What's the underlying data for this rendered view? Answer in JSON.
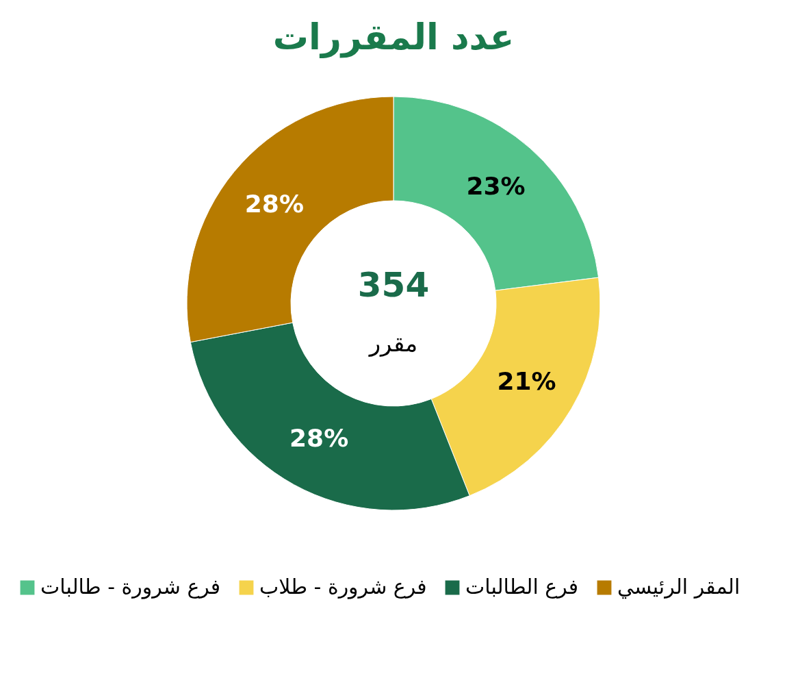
{
  "chart_data": {
    "type": "donut",
    "title": "عدد المقررات",
    "categories": [
      "فرع شرورة - طالبات",
      "فرع شرورة - طلاب",
      "فرع الطالبات",
      "المقر الرئيسي"
    ],
    "values": [
      23,
      21,
      28,
      28
    ],
    "colors": [
      "#54c38b",
      "#f5d34c",
      "#1a6b4a",
      "#b77b00"
    ],
    "value_labels": [
      "23%",
      "21%",
      "28%",
      "28%"
    ],
    "annotations": [
      "354",
      "مقرر"
    ],
    "legend": "bottom"
  }
}
